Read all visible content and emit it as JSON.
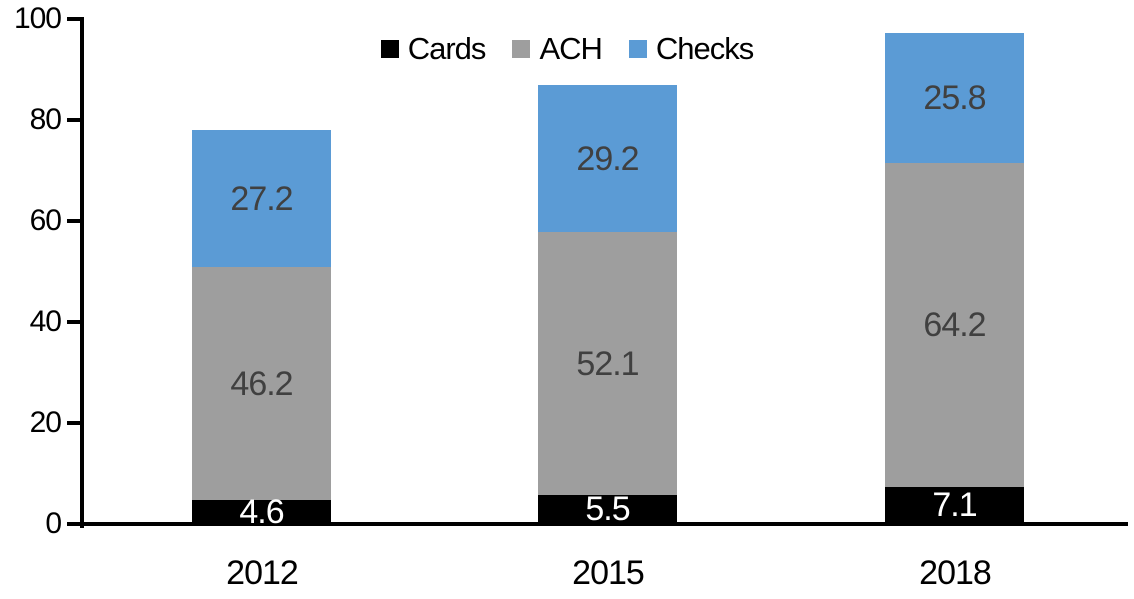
{
  "chart_data": {
    "type": "bar",
    "stacked": true,
    "categories": [
      "2012",
      "2015",
      "2018"
    ],
    "series": [
      {
        "name": "Cards",
        "color": "#000000",
        "label_color": "#ffffff",
        "values": [
          4.6,
          5.5,
          7.1
        ]
      },
      {
        "name": "ACH",
        "color": "#9e9e9e",
        "label_color": "#404040",
        "values": [
          46.2,
          52.1,
          64.2
        ]
      },
      {
        "name": "Checks",
        "color": "#5b9bd5",
        "label_color": "#404040",
        "values": [
          27.2,
          29.2,
          25.8
        ]
      }
    ],
    "data_labels_visible": true,
    "ylim": [
      0,
      100
    ],
    "yticks": [
      0,
      20,
      40,
      60,
      80,
      100
    ],
    "legend_position": "top",
    "grid": false,
    "axis_color": "#000000",
    "background": "#ffffff"
  }
}
